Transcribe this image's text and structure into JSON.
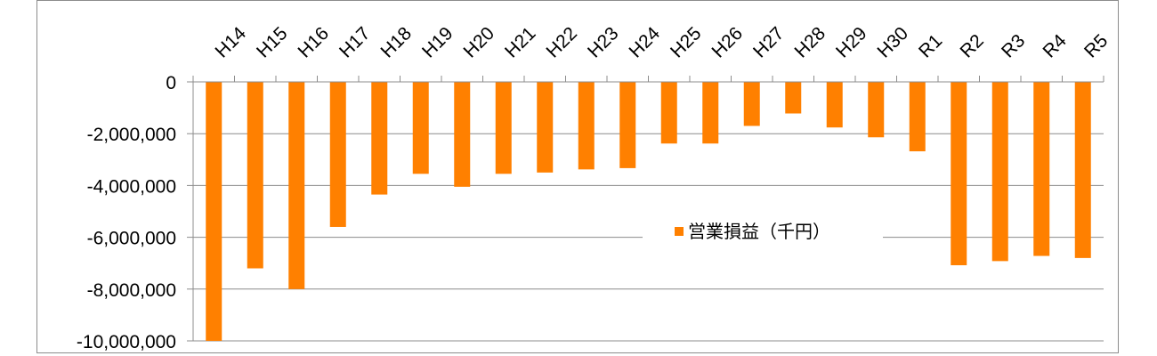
{
  "chart_data": {
    "type": "bar",
    "categories": [
      "H14",
      "H15",
      "H16",
      "H17",
      "H18",
      "H19",
      "H20",
      "H21",
      "H22",
      "H23",
      "H24",
      "H25",
      "H26",
      "H27",
      "H28",
      "H29",
      "H30",
      "R1",
      "R2",
      "R3",
      "R4",
      "R5"
    ],
    "series": [
      {
        "name": "営業損益（千円）",
        "color": "#ff8000",
        "values": [
          -10000000,
          -7200000,
          -8000000,
          -5600000,
          -4350000,
          -3550000,
          -4050000,
          -3550000,
          -3500000,
          -3380000,
          -3330000,
          -2380000,
          -2380000,
          -1700000,
          -1220000,
          -1760000,
          -2140000,
          -2680000,
          -7080000,
          -6920000,
          -6720000,
          -6800000
        ]
      }
    ],
    "ylim": [
      -10000000,
      0
    ],
    "yticks": [
      0,
      -2000000,
      -4000000,
      -6000000,
      -8000000,
      -10000000
    ],
    "ytick_labels": [
      "0",
      "-2,000,000",
      "-4,000,000",
      "-6,000,000",
      "-8,000,000",
      "-10,000,000"
    ],
    "legend": "center-right",
    "grid": true,
    "xaxis_position": "top"
  }
}
